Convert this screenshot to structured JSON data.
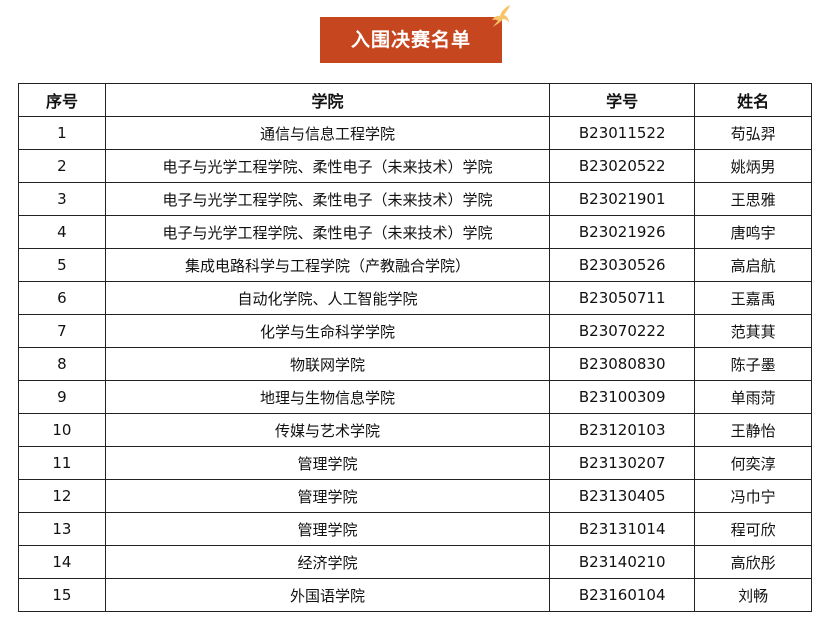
{
  "title": "入围决赛名单",
  "colors": {
    "banner": "#c6461f",
    "accent": "#f5b83c"
  },
  "table": {
    "headers": [
      "序号",
      "学院",
      "学号",
      "姓名"
    ],
    "rows": [
      [
        "1",
        "通信与信息工程学院",
        "B23011522",
        "苟弘羿"
      ],
      [
        "2",
        "电子与光学工程学院、柔性电子（未来技术）学院",
        "B23020522",
        "姚炳男"
      ],
      [
        "3",
        "电子与光学工程学院、柔性电子（未来技术）学院",
        "B23021901",
        "王思雅"
      ],
      [
        "4",
        "电子与光学工程学院、柔性电子（未来技术）学院",
        "B23021926",
        "唐鸣宇"
      ],
      [
        "5",
        "集成电路科学与工程学院（产教融合学院）",
        "B23030526",
        "高启航"
      ],
      [
        "6",
        "自动化学院、人工智能学院",
        "B23050711",
        "王嘉禹"
      ],
      [
        "7",
        "化学与生命科学学院",
        "B23070222",
        "范萁萁"
      ],
      [
        "8",
        "物联网学院",
        "B23080830",
        "陈子墨"
      ],
      [
        "9",
        "地理与生物信息学院",
        "B23100309",
        "单雨菏"
      ],
      [
        "10",
        "传媒与艺术学院",
        "B23120103",
        "王静怡"
      ],
      [
        "11",
        "管理学院",
        "B23130207",
        "何奕淳"
      ],
      [
        "12",
        "管理学院",
        "B23130405",
        "冯巾宁"
      ],
      [
        "13",
        "管理学院",
        "B23131014",
        "程可欣"
      ],
      [
        "14",
        "经济学院",
        "B23140210",
        "高欣彤"
      ],
      [
        "15",
        "外国语学院",
        "B23160104",
        "刘畅"
      ]
    ]
  }
}
